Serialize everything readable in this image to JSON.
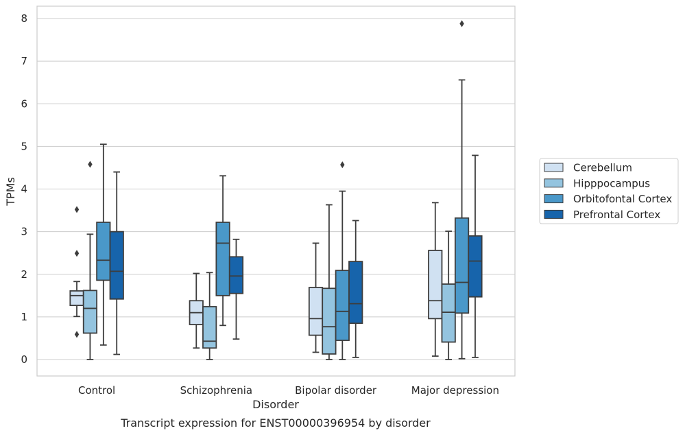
{
  "chart_data": {
    "type": "boxplot",
    "caption": "Transcript expression for ENST00000396954 by disorder",
    "xlabel": "Disorder",
    "ylabel": "TPMs",
    "ylim": [
      -0.38,
      8.3
    ],
    "yticks": [
      0,
      1,
      2,
      3,
      4,
      5,
      6,
      7,
      8
    ],
    "grid": "horizontal",
    "legend_position": "right",
    "categories": [
      "Control",
      "Schizophrenia",
      "Bipolar disorder",
      "Major depression"
    ],
    "series": [
      {
        "name": "Cerebellum",
        "color": "#d0e1f2",
        "boxes": [
          {
            "whislo": 1.01,
            "q1": 1.27,
            "med": 1.5,
            "q3": 1.61,
            "whishi": 1.83,
            "fliers": [
              0.59,
              2.49,
              3.52
            ]
          },
          {
            "whislo": 0.27,
            "q1": 0.82,
            "med": 1.1,
            "q3": 1.38,
            "whishi": 2.02,
            "fliers": []
          },
          {
            "whislo": 0.17,
            "q1": 0.57,
            "med": 0.96,
            "q3": 1.69,
            "whishi": 2.73,
            "fliers": []
          },
          {
            "whislo": 0.08,
            "q1": 0.96,
            "med": 1.38,
            "q3": 2.56,
            "whishi": 3.68,
            "fliers": []
          }
        ]
      },
      {
        "name": "Hipppocampus",
        "color": "#94c4df",
        "boxes": [
          {
            "whislo": 0.0,
            "q1": 0.62,
            "med": 1.2,
            "q3": 1.62,
            "whishi": 2.94,
            "fliers": [
              4.58
            ]
          },
          {
            "whislo": 0.0,
            "q1": 0.27,
            "med": 0.43,
            "q3": 1.24,
            "whishi": 2.04,
            "fliers": []
          },
          {
            "whislo": 0.0,
            "q1": 0.13,
            "med": 0.77,
            "q3": 1.67,
            "whishi": 3.63,
            "fliers": []
          },
          {
            "whislo": 0.0,
            "q1": 0.41,
            "med": 1.11,
            "q3": 1.77,
            "whishi": 3.01,
            "fliers": []
          }
        ]
      },
      {
        "name": "Orbitofontal Cortex",
        "color": "#4a98c9",
        "boxes": [
          {
            "whislo": 0.34,
            "q1": 1.86,
            "med": 2.33,
            "q3": 3.22,
            "whishi": 5.05,
            "fliers": []
          },
          {
            "whislo": 0.8,
            "q1": 1.5,
            "med": 2.73,
            "q3": 3.22,
            "whishi": 4.31,
            "fliers": []
          },
          {
            "whislo": 0.0,
            "q1": 0.45,
            "med": 1.13,
            "q3": 2.09,
            "whishi": 3.95,
            "fliers": [
              4.57
            ]
          },
          {
            "whislo": 0.02,
            "q1": 1.09,
            "med": 1.81,
            "q3": 3.32,
            "whishi": 6.56,
            "fliers": [
              7.88
            ]
          }
        ]
      },
      {
        "name": "Prefrontal Cortex",
        "color": "#1764ab",
        "boxes": [
          {
            "whislo": 0.12,
            "q1": 1.42,
            "med": 2.07,
            "q3": 3.0,
            "whishi": 4.4,
            "fliers": []
          },
          {
            "whislo": 0.48,
            "q1": 1.55,
            "med": 1.96,
            "q3": 2.41,
            "whishi": 2.82,
            "fliers": []
          },
          {
            "whislo": 0.05,
            "q1": 0.85,
            "med": 1.31,
            "q3": 2.3,
            "whishi": 3.26,
            "fliers": []
          },
          {
            "whislo": 0.05,
            "q1": 1.47,
            "med": 2.31,
            "q3": 2.9,
            "whishi": 4.79,
            "fliers": []
          }
        ]
      }
    ]
  }
}
